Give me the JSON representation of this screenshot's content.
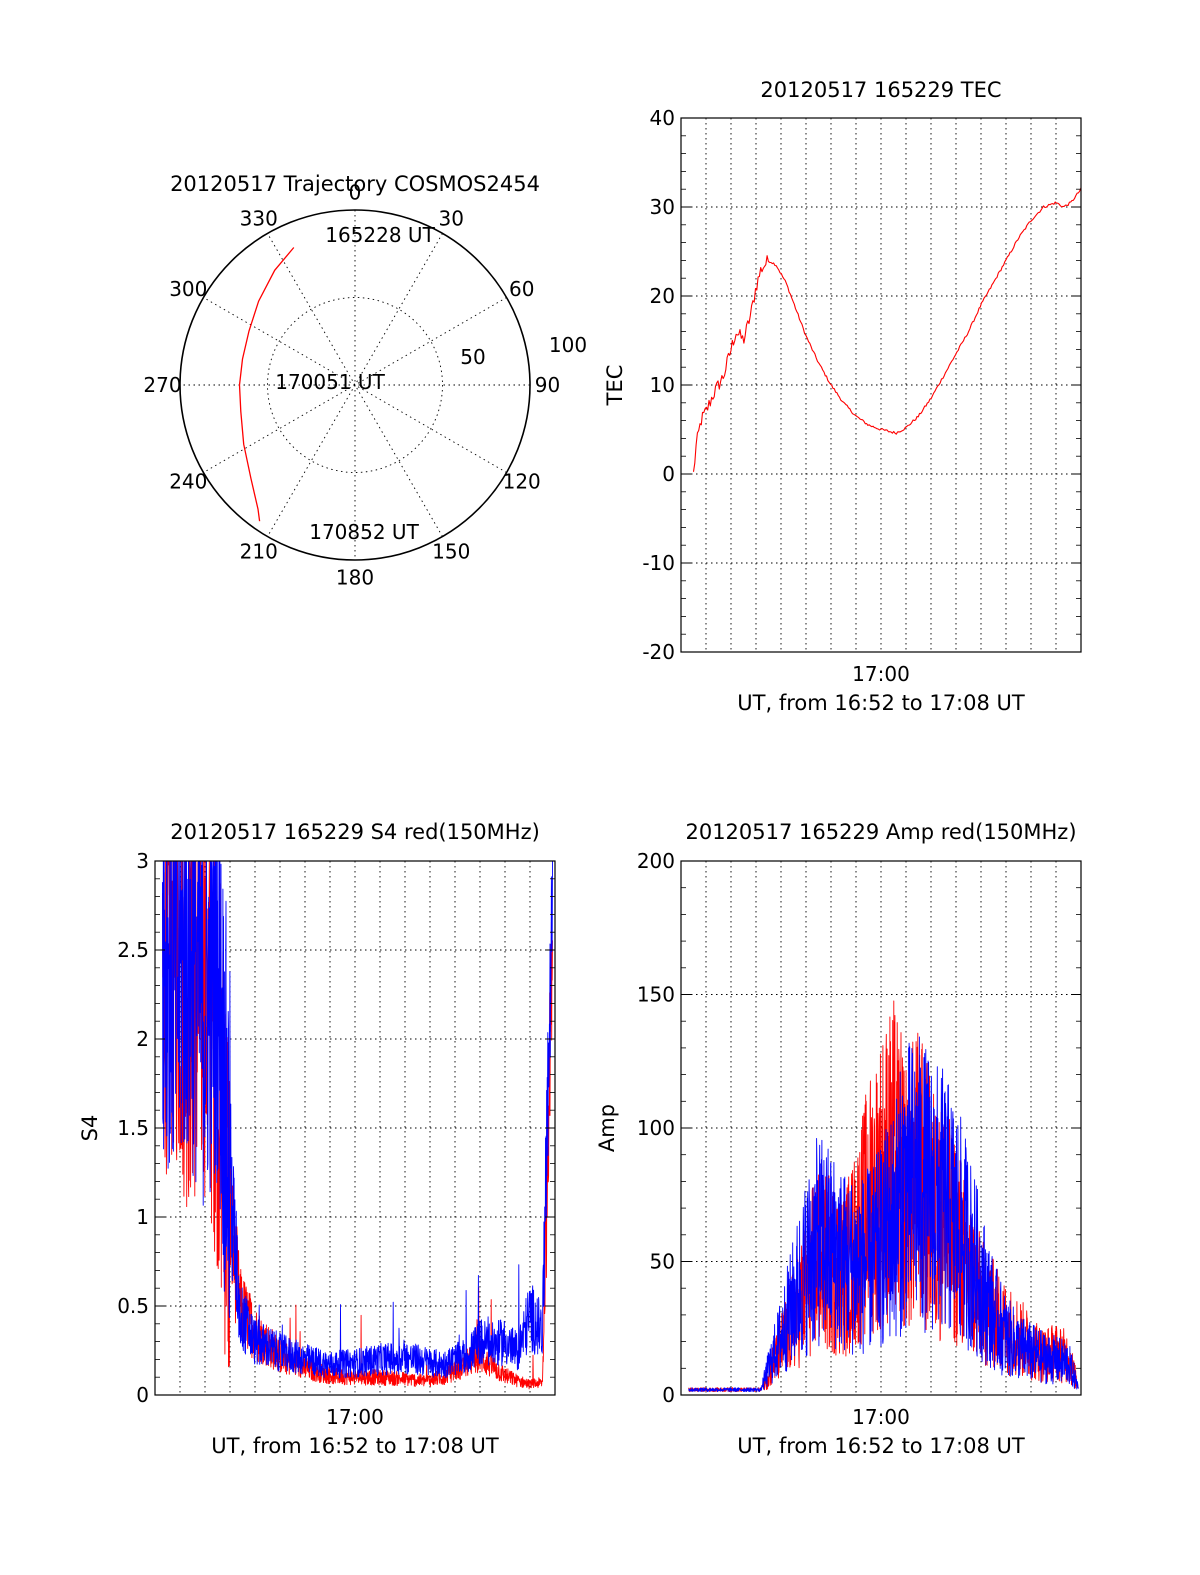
{
  "chart_data": [
    {
      "id": "trajectory",
      "type": "polar",
      "title": "20120517 Trajectory COSMOS2454",
      "azimuth_labels": [
        "0",
        "30",
        "60",
        "90",
        "120",
        "150",
        "180",
        "210",
        "240",
        "270",
        "300",
        "330"
      ],
      "radial_labels": [
        "50",
        "100"
      ],
      "rlim": [
        0,
        100
      ],
      "grid": true,
      "line_color": "#ff0000",
      "annotations": [
        {
          "text": "165228 UT",
          "az": 341,
          "r": 86
        },
        {
          "text": "170051 UT",
          "az": 270,
          "r": 20
        },
        {
          "text": "170852 UT",
          "az": 211,
          "r": 84
        }
      ],
      "track": [
        {
          "az": 336,
          "r": 86
        },
        {
          "az": 325,
          "r": 80
        },
        {
          "az": 311,
          "r": 73
        },
        {
          "az": 297,
          "r": 68
        },
        {
          "az": 283,
          "r": 66
        },
        {
          "az": 270,
          "r": 66
        },
        {
          "az": 257,
          "r": 67
        },
        {
          "az": 242,
          "r": 72
        },
        {
          "az": 228,
          "r": 80
        },
        {
          "az": 218,
          "r": 90
        },
        {
          "az": 215,
          "r": 95
        }
      ]
    },
    {
      "id": "tec",
      "type": "line",
      "title": "20120517 165229 TEC",
      "xlabel": "UT, from 16:52 to 17:08 UT",
      "ylabel": "TEC",
      "xlim": [
        0,
        16
      ],
      "ylim": [
        -20,
        40
      ],
      "yticks": [
        -20,
        -10,
        0,
        10,
        20,
        30,
        40
      ],
      "xtick_labels": [
        {
          "at": 8,
          "label": "17:00"
        }
      ],
      "grid": true,
      "series": [
        {
          "color": "#ff0000",
          "x": [
            0.5,
            0.6,
            0.8,
            1.0,
            1.3,
            1.5,
            1.7,
            2.0,
            2.2,
            2.5,
            2.8,
            3.0,
            3.2,
            3.5,
            3.8,
            4.2,
            4.6,
            5.0,
            5.5,
            6.0,
            6.5,
            7.0,
            7.5,
            8.0,
            8.6,
            9.0,
            9.5,
            10.0,
            10.5,
            11.0,
            11.5,
            12.0,
            12.5,
            13.0,
            13.5,
            14.0,
            14.5,
            15.0,
            15.3,
            15.6,
            16.0
          ],
          "y": [
            0,
            3,
            6,
            7,
            9,
            10,
            11,
            14,
            16,
            15,
            18,
            21,
            23,
            24,
            23.5,
            21.5,
            18.5,
            15.5,
            12.5,
            10,
            8,
            6.5,
            5.5,
            5,
            4.6,
            5.2,
            6.5,
            8.5,
            11,
            13.5,
            16,
            19,
            21.5,
            24,
            26.5,
            28.5,
            30,
            30.5,
            30,
            30.5,
            32
          ]
        }
      ]
    },
    {
      "id": "s4",
      "type": "line",
      "title": "20120517 165229 S4 red(150MHz)",
      "xlabel": "UT, from 16:52 to 17:08 UT",
      "ylabel": "S4",
      "xlim": [
        0,
        16
      ],
      "ylim": [
        0,
        3
      ],
      "yticks": [
        0,
        0.5,
        1,
        1.5,
        2,
        2.5,
        3
      ],
      "ytick_labels": [
        "0",
        "0.5",
        "1",
        "1.5",
        "2",
        "2.5",
        "3"
      ],
      "xtick_labels": [
        {
          "at": 8,
          "label": "17:00"
        }
      ],
      "grid": true,
      "series": [
        {
          "color": "#ff0000",
          "x": [
            0.3,
            0.8,
            1.3,
            2.0,
            2.5,
            3.0,
            3.4,
            4.0,
            5.0,
            6.0,
            7.0,
            8.0,
            9.0,
            10.0,
            10.8,
            11.5,
            12.0,
            12.5,
            13.0,
            13.5,
            14.0,
            14.5,
            15.0,
            15.5,
            15.9
          ],
          "y": [
            2.4,
            2.5,
            2.2,
            2.3,
            1.9,
            1.0,
            0.5,
            0.35,
            0.22,
            0.15,
            0.11,
            0.1,
            0.1,
            0.09,
            0.08,
            0.1,
            0.14,
            0.18,
            0.22,
            0.16,
            0.11,
            0.08,
            0.06,
            0.07,
            2.6
          ]
        },
        {
          "color": "#0000ff",
          "x": [
            0.3,
            0.8,
            1.3,
            2.0,
            2.5,
            3.0,
            3.4,
            4.0,
            5.0,
            6.0,
            7.0,
            8.0,
            9.0,
            10.0,
            10.8,
            11.5,
            12.0,
            12.5,
            13.0,
            13.5,
            14.0,
            14.5,
            15.0,
            15.5,
            15.9
          ],
          "y": [
            2.6,
            2.3,
            2.5,
            2.2,
            2.4,
            1.2,
            0.45,
            0.3,
            0.24,
            0.2,
            0.17,
            0.18,
            0.2,
            0.21,
            0.19,
            0.17,
            0.2,
            0.22,
            0.3,
            0.28,
            0.3,
            0.24,
            0.45,
            0.35,
            2.8
          ]
        }
      ]
    },
    {
      "id": "amp",
      "type": "line",
      "title": "20120517 165229 Amp red(150MHz)",
      "xlabel": "UT, from 16:52 to 17:08 UT",
      "ylabel": "Amp",
      "xlim": [
        0,
        16
      ],
      "ylim": [
        0,
        200
      ],
      "yticks": [
        0,
        50,
        100,
        150,
        200
      ],
      "xtick_labels": [
        {
          "at": 8,
          "label": "17:00"
        }
      ],
      "grid": true,
      "series": [
        {
          "color": "#ff0000",
          "x": [
            0.3,
            1.5,
            2.5,
            3.2,
            3.5,
            4.0,
            4.5,
            5.0,
            5.5,
            6.0,
            6.5,
            7.0,
            7.5,
            8.0,
            8.5,
            9.0,
            9.5,
            10.0,
            10.5,
            11.0,
            11.5,
            12.0,
            12.5,
            13.0,
            13.5,
            14.0,
            14.5,
            15.0,
            15.5,
            15.9
          ],
          "y": [
            2,
            2,
            2,
            2,
            8,
            18,
            28,
            40,
            52,
            48,
            45,
            55,
            70,
            80,
            88,
            75,
            82,
            70,
            64,
            58,
            45,
            35,
            30,
            25,
            22,
            18,
            15,
            16,
            14,
            3
          ]
        },
        {
          "color": "#0000ff",
          "x": [
            0.3,
            1.5,
            2.5,
            3.2,
            3.5,
            4.0,
            4.5,
            5.0,
            5.5,
            6.0,
            6.5,
            7.0,
            7.5,
            8.0,
            8.5,
            9.0,
            9.5,
            10.0,
            10.5,
            11.0,
            11.5,
            12.0,
            12.5,
            13.0,
            13.5,
            14.0,
            14.5,
            15.0,
            15.5,
            15.9
          ],
          "y": [
            2,
            2,
            2,
            2,
            10,
            22,
            35,
            48,
            58,
            55,
            50,
            48,
            50,
            55,
            65,
            78,
            80,
            75,
            72,
            65,
            55,
            42,
            30,
            22,
            18,
            16,
            14,
            13,
            12,
            3
          ]
        }
      ]
    }
  ]
}
